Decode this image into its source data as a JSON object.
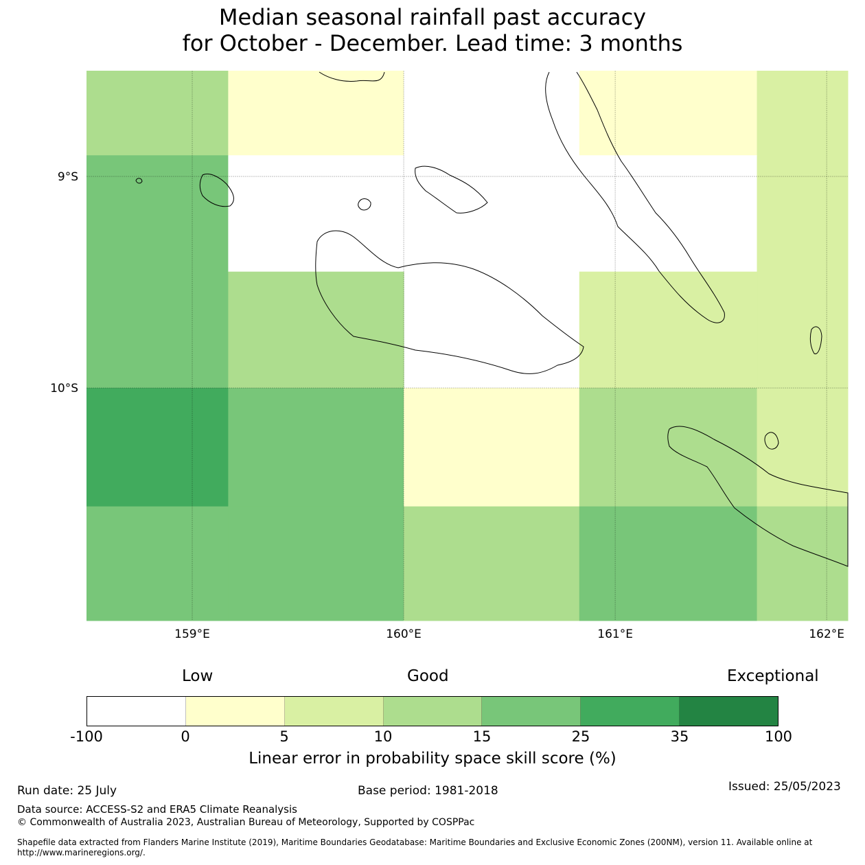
{
  "title": {
    "line1": "Median seasonal rainfall past accuracy",
    "line2": "for October - December. Lead time: 3 months"
  },
  "map": {
    "lat_labels": [
      "9°S",
      "10°S"
    ],
    "lon_labels": [
      "159°E",
      "160°E",
      "161°E",
      "162°E"
    ],
    "lat_values": [
      -9,
      -10
    ],
    "lon_values": [
      159,
      160,
      161,
      162
    ],
    "lon_range": [
      158.5,
      162.1
    ],
    "lat_range": [
      -8.5,
      -11.1
    ],
    "grid_cells": [
      {
        "lon0": 158.5,
        "lon1": 159.17,
        "lat0": -8.5,
        "lat1": -8.9,
        "bin": 3
      },
      {
        "lon0": 159.17,
        "lon1": 160.0,
        "lat0": -8.5,
        "lat1": -8.9,
        "bin": 1
      },
      {
        "lon0": 160.0,
        "lon1": 160.83,
        "lat0": -8.5,
        "lat1": -8.9,
        "bin": 0
      },
      {
        "lon0": 160.83,
        "lon1": 161.67,
        "lat0": -8.5,
        "lat1": -8.9,
        "bin": 1
      },
      {
        "lon0": 161.67,
        "lon1": 162.1,
        "lat0": -8.5,
        "lat1": -8.9,
        "bin": 2
      },
      {
        "lon0": 158.5,
        "lon1": 159.17,
        "lat0": -8.9,
        "lat1": -10.0,
        "bin": 4
      },
      {
        "lon0": 159.17,
        "lon1": 160.0,
        "lat0": -8.9,
        "lat1": -9.45,
        "bin": 0
      },
      {
        "lon0": 160.0,
        "lon1": 160.83,
        "lat0": -8.9,
        "lat1": -10.0,
        "bin": 0
      },
      {
        "lon0": 160.83,
        "lon1": 161.67,
        "lat0": -8.9,
        "lat1": -9.45,
        "bin": 0
      },
      {
        "lon0": 161.67,
        "lon1": 162.1,
        "lat0": -8.9,
        "lat1": -10.0,
        "bin": 2
      },
      {
        "lon0": 159.17,
        "lon1": 160.0,
        "lat0": -9.45,
        "lat1": -10.0,
        "bin": 3
      },
      {
        "lon0": 160.83,
        "lon1": 161.67,
        "lat0": -9.45,
        "lat1": -10.0,
        "bin": 2
      },
      {
        "lon0": 158.5,
        "lon1": 159.17,
        "lat0": -10.0,
        "lat1": -10.56,
        "bin": 5
      },
      {
        "lon0": 159.17,
        "lon1": 160.0,
        "lat0": -10.0,
        "lat1": -10.56,
        "bin": 4
      },
      {
        "lon0": 160.0,
        "lon1": 160.83,
        "lat0": -10.0,
        "lat1": -10.56,
        "bin": 1
      },
      {
        "lon0": 160.83,
        "lon1": 161.67,
        "lat0": -10.0,
        "lat1": -10.56,
        "bin": 3
      },
      {
        "lon0": 161.67,
        "lon1": 162.1,
        "lat0": -10.0,
        "lat1": -10.56,
        "bin": 2
      },
      {
        "lon0": 158.5,
        "lon1": 159.17,
        "lat0": -10.56,
        "lat1": -11.1,
        "bin": 4
      },
      {
        "lon0": 159.17,
        "lon1": 160.0,
        "lat0": -10.56,
        "lat1": -11.1,
        "bin": 4
      },
      {
        "lon0": 160.0,
        "lon1": 160.83,
        "lat0": -10.56,
        "lat1": -11.1,
        "bin": 3
      },
      {
        "lon0": 160.83,
        "lon1": 161.67,
        "lat0": -10.56,
        "lat1": -11.1,
        "bin": 4
      },
      {
        "lon0": 161.67,
        "lon1": 162.1,
        "lat0": -10.56,
        "lat1": -11.1,
        "bin": 3
      }
    ]
  },
  "colorbar": {
    "words": {
      "low": "Low",
      "good": "Good",
      "exceptional": "Exceptional"
    },
    "colors": [
      "#ffffff",
      "#ffffcc",
      "#d9f0a3",
      "#addd8e",
      "#78c679",
      "#41ab5d",
      "#238443"
    ],
    "ticks": [
      "-100",
      "0",
      "5",
      "10",
      "15",
      "25",
      "35",
      "100"
    ],
    "label": "Linear error in probability space skill score (%)"
  },
  "footer": {
    "run_date": "Run date: 25 July",
    "base_period": "Base period: 1981-2018",
    "issued": "Issued: 25/05/2023",
    "data_source": "Data source: ACCESS-S2 and ERA5 Climate Reanalysis",
    "copyright": "© Commonwealth of Australia 2023, Australian Bureau of Meteorology, Supported by COSPPac",
    "shapefile": "Shapefile data extracted from Flanders Marine Institute (2019), Maritime Boundaries Geodatabase: Maritime Boundaries and Exclusive Economic Zones (200NM), version 11. Available online at http://www.marineregions.org/."
  }
}
